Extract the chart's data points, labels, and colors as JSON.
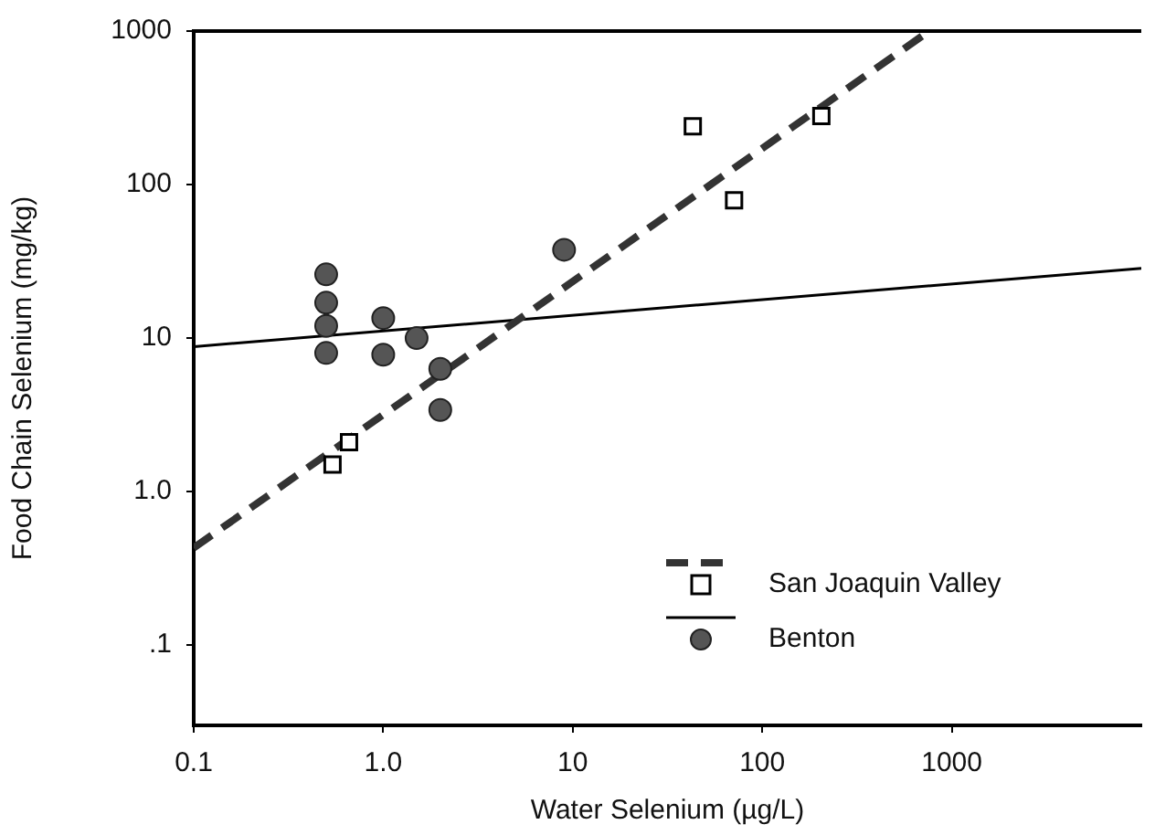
{
  "chart_data": {
    "type": "scatter",
    "xlabel": "Water Selenium (µg/L)",
    "ylabel": "Food Chain Selenium (mg/kg)",
    "log": "xy",
    "xlim": [
      0.1,
      10000
    ],
    "ylim": [
      0.03,
      1000
    ],
    "xticks": [
      0.1,
      {
        "value": 1,
        "label": "1.0"
      },
      10,
      100,
      1000
    ],
    "yticks": [
      {
        "value": 0.1,
        "label": ".1"
      },
      {
        "value": 1,
        "label": "1.0"
      },
      10,
      100,
      1000
    ],
    "grid": false,
    "legend": "bottom right",
    "series": [
      {
        "name": "San Joaquin Valley",
        "type": "scatter",
        "marker": "square",
        "color": "#000000",
        "x": [
          0.54,
          0.66,
          43,
          71,
          205
        ],
        "values": [
          1.5,
          2.1,
          240,
          79,
          280
        ]
      },
      {
        "name": "Benton",
        "type": "scatter",
        "marker": "circle",
        "color": "#555555",
        "x": [
          0.5,
          0.5,
          0.5,
          0.5,
          1,
          1,
          1.5,
          2,
          2,
          9
        ],
        "values": [
          26,
          17,
          12,
          8,
          13.5,
          7.8,
          10,
          6.3,
          3.4,
          37.6
        ]
      },
      {
        "type": "line",
        "line_style": "dashed",
        "color": "#333333",
        "x": [
          0.1,
          760
        ],
        "values": [
          0.43,
          1000
        ]
      },
      {
        "type": "line",
        "line_style": "solid",
        "color": "#000000",
        "x": [
          0.1,
          10000
        ],
        "values": [
          8.8,
          28.5
        ]
      }
    ]
  }
}
